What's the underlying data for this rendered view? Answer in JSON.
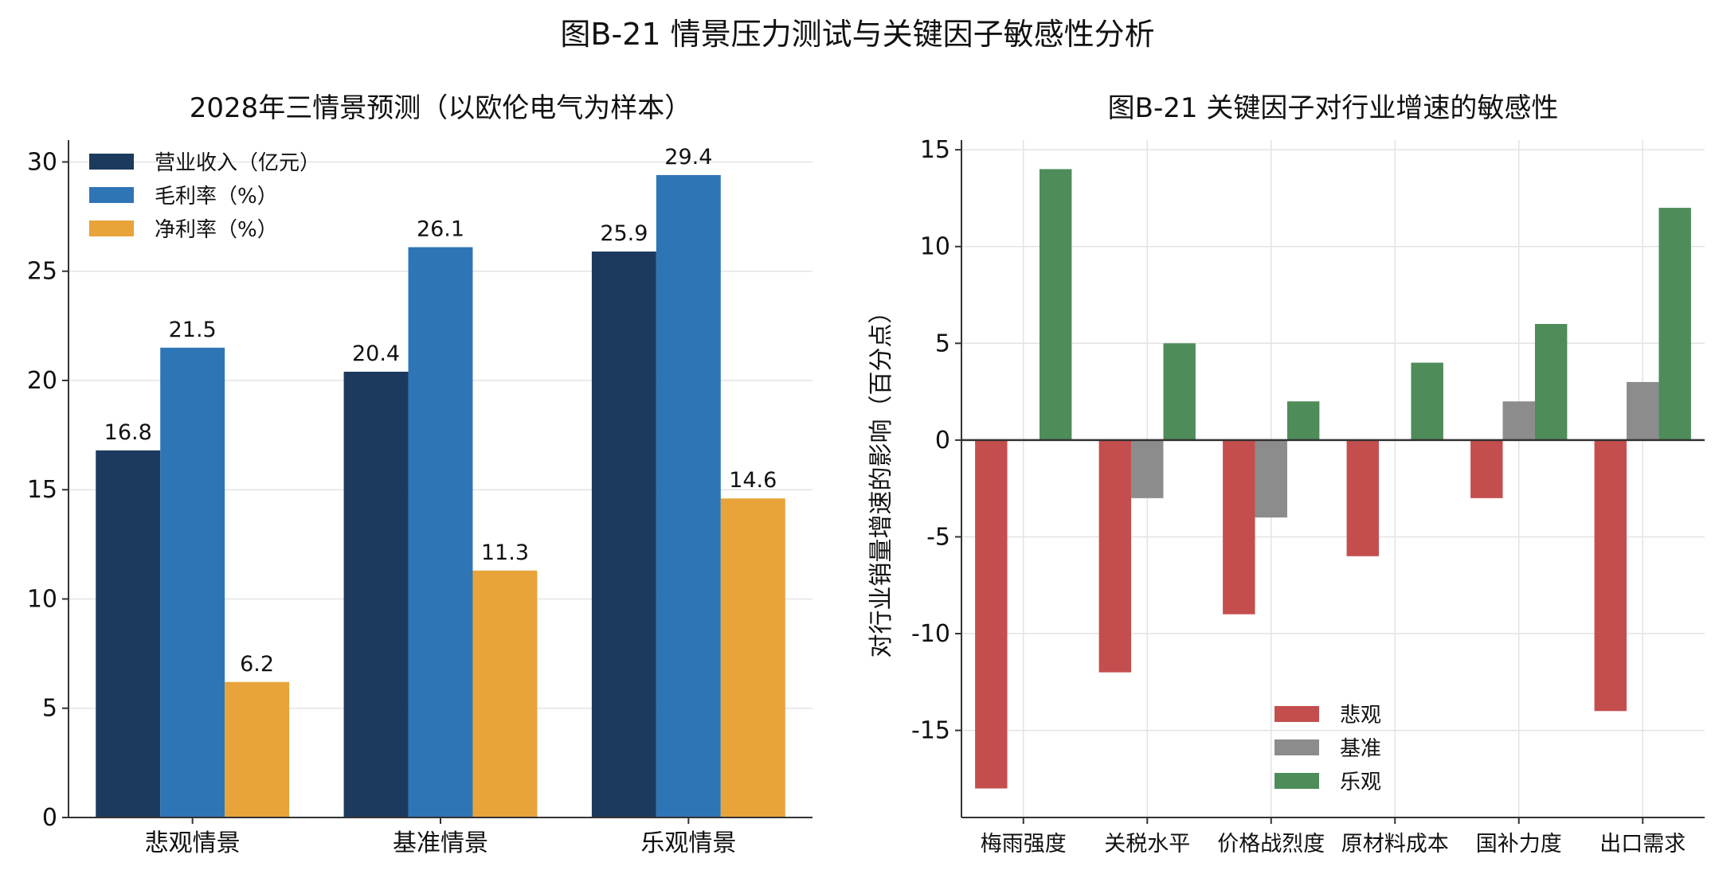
{
  "figure": {
    "suptitle": "图B-21  情景压力测试与关键因子敏感性分析"
  },
  "chart_data": [
    {
      "type": "bar",
      "title": "2028年三情景预测（以欧伦电气为样本）",
      "xlabel": "",
      "ylabel": "",
      "categories": [
        "悲观情景",
        "基准情景",
        "乐观情景"
      ],
      "series": [
        {
          "name": "营业收入（亿元）",
          "color": "#1c3a5e",
          "values": [
            16.8,
            20.4,
            25.9
          ]
        },
        {
          "name": "毛利率（%）",
          "color": "#2e75b6",
          "values": [
            21.5,
            26.1,
            29.4
          ]
        },
        {
          "name": "净利率（%）",
          "color": "#e8a33a",
          "values": [
            6.2,
            11.3,
            14.6
          ]
        }
      ],
      "data_labels": [
        [
          "16.8",
          "20.4",
          "25.9"
        ],
        [
          "21.5",
          "26.1",
          "29.4"
        ],
        [
          "6.2",
          "11.3",
          "14.6"
        ]
      ],
      "ylim": [
        0,
        31
      ],
      "yticks": [
        0,
        5,
        10,
        15,
        20,
        25,
        30
      ],
      "ytick_labels": [
        "0",
        "5",
        "10",
        "15",
        "20",
        "25",
        "30"
      ],
      "grid": "horizontal",
      "legend": "upper-left"
    },
    {
      "type": "bar",
      "title": "图B-21  关键因子对行业增速的敏感性",
      "xlabel": "",
      "ylabel": "对行业销量增速的影响（百分点）",
      "categories": [
        "梅雨强度",
        "关税水平",
        "价格战烈度",
        "原材料成本",
        "国补力度",
        "出口需求"
      ],
      "series": [
        {
          "name": "悲观",
          "color": "#c44e4e",
          "values": [
            -18,
            -12,
            -9,
            -6,
            -3,
            -14
          ]
        },
        {
          "name": "基准",
          "color": "#8c8c8c",
          "values": [
            0,
            -3,
            -4,
            0,
            2,
            3
          ]
        },
        {
          "name": "乐观",
          "color": "#4e8c5a",
          "values": [
            14,
            5,
            2,
            4,
            6,
            12
          ]
        }
      ],
      "ylim": [
        -19.5,
        15.5
      ],
      "yticks": [
        -15,
        -10,
        -5,
        0,
        5,
        10,
        15
      ],
      "ytick_labels": [
        "-15",
        "-10",
        "-5",
        "0",
        "5",
        "10",
        "15"
      ],
      "grid": "both",
      "legend": "lower-center"
    }
  ]
}
